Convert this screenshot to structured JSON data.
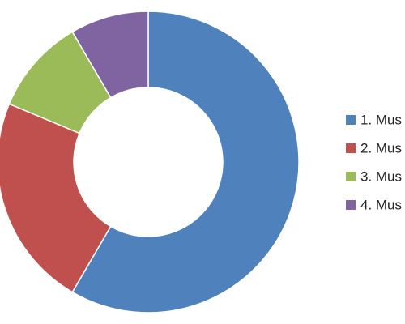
{
  "chart_data": {
    "type": "donut",
    "categories": [
      "1. Mus",
      "2. Mus",
      "3. Mus",
      "4. Mus"
    ],
    "values": [
      58.4,
      22.9,
      10.3,
      8.4
    ],
    "colors": [
      "#4f81bd",
      "#c0504d",
      "#9bbb59",
      "#8064a2"
    ],
    "legend": "right"
  }
}
